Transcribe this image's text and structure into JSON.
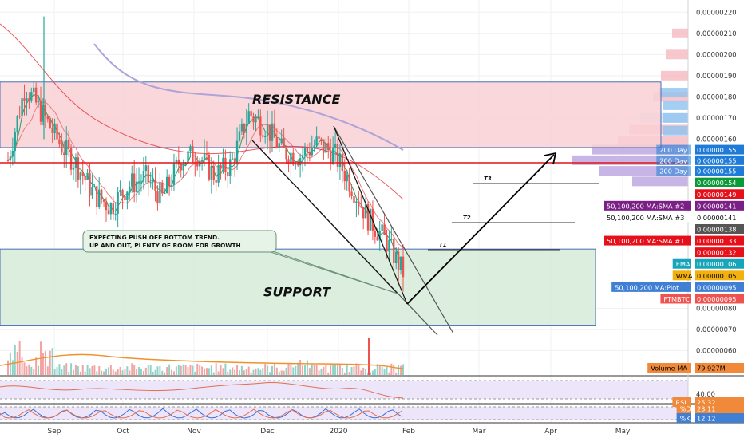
{
  "symbol": "FTMBTC",
  "zones": {
    "resistance": {
      "label": "RESISTANCE",
      "price_top": 1.87e-06,
      "price_bottom": 1.56e-06,
      "color": "#f7c5cb"
    },
    "support": {
      "label": "SUPPORT",
      "price_top": 1.08e-06,
      "price_bottom": 7.2e-07,
      "color": "#cde8d2"
    }
  },
  "annotation": {
    "line1": "EXPECTING PUSH OFF BOTTOM TREND.",
    "line2": "UP AND OUT, PLENTY OF ROOM FOR GROWTH"
  },
  "targets": [
    {
      "label": "T1",
      "price": 1.16e-06
    },
    {
      "label": "T2",
      "price": 1.31e-06
    },
    {
      "label": "T3",
      "price": 1.46e-06
    }
  ],
  "price_axis": {
    "ticks": [
      "0.00000220",
      "0.00000210",
      "0.00000200",
      "0.00000190",
      "0.00000180",
      "0.00000170",
      "0.00000160",
      "0.00000080",
      "0.00000070",
      "0.00000060"
    ],
    "tick_values": [
      2.2e-06,
      2.1e-06,
      2e-06,
      1.9e-06,
      1.8e-06,
      1.7e-06,
      1.6e-06,
      8e-07,
      7e-07,
      6e-07
    ]
  },
  "price_labels": [
    {
      "text": "0.00000155",
      "price": 1.55e-06,
      "bg": "#1e7bd8",
      "fg": "#ffffff",
      "tag": "200 Day"
    },
    {
      "text": "0.00000155",
      "price": 1.5e-06,
      "bg": "#1e7bd8",
      "fg": "#ffffff",
      "tag": "200 Day"
    },
    {
      "text": "0.00000155",
      "price": 1.45e-06,
      "bg": "#1e7bd8",
      "fg": "#ffffff",
      "tag": "200 Day"
    },
    {
      "text": "0.00000154",
      "price": 1.395e-06,
      "bg": "#0a9a3a",
      "fg": "#ffffff",
      "tag": ""
    },
    {
      "text": "0.00000149",
      "price": 1.34e-06,
      "bg": "#e5101a",
      "fg": "#ffffff",
      "tag": ""
    },
    {
      "text": "0.00000141",
      "price": 1.285e-06,
      "bg": "#7a1f86",
      "fg": "#ffffff",
      "tag": "50,100,200 MA:SMA #2"
    },
    {
      "text": "0.00000141",
      "price": 1.23e-06,
      "bg": "#ffffff",
      "fg": "#000000",
      "tag": "50,100,200 MA:SMA #3"
    },
    {
      "text": "0.00000138",
      "price": 1.175e-06,
      "bg": "#555555",
      "fg": "#ffffff",
      "tag": ""
    },
    {
      "text": "0.00000133",
      "price": 1.12e-06,
      "bg": "#e5101a",
      "fg": "#ffffff",
      "tag": "50,100,200 MA:SMA #1"
    },
    {
      "text": "0.00000132",
      "price": 1.065e-06,
      "bg": "#e5101a",
      "fg": "#ffffff",
      "tag": ""
    },
    {
      "text": "0.00000106",
      "price": 1.01e-06,
      "bg": "#17a6b9",
      "fg": "#ffffff",
      "tag": "EMA"
    },
    {
      "text": "0.00000105",
      "price": 9.55e-07,
      "bg": "#f2b10f",
      "fg": "#000000",
      "tag": "WMA"
    },
    {
      "text": "0.00000095",
      "price": 9e-07,
      "bg": "#3f7fd4",
      "fg": "#ffffff",
      "tag": "50,100,200 MA:Plot"
    },
    {
      "text": "0.00000095",
      "price": 8.45e-07,
      "bg": "#ef5350",
      "fg": "#ffffff",
      "tag": "FTMBTC"
    }
  ],
  "time_axis": {
    "labels": [
      "Sep",
      "Oct",
      "Nov",
      "Dec",
      "2020",
      "Feb",
      "Mar",
      "Apr",
      "May"
    ]
  },
  "volume_pane": {
    "label": "Volume MA",
    "value": "79.927M"
  },
  "rsi_pane": {
    "label": "RSI",
    "value": "25.32",
    "level": "40.00"
  },
  "stoch_pane": {
    "d_label": "%D",
    "d_value": "23.11",
    "k_label": "%K",
    "k_value": "12.12"
  },
  "colors": {
    "up": "#26a69a",
    "down": "#ef5350",
    "sma_red": "#e5101a",
    "ma_pink": "#e88080",
    "ma_purple": "#b0a3d9",
    "ema_green": "#2e9e5a"
  },
  "chart_data": {
    "type": "candlestick",
    "x": [
      "2019-08-20",
      "2019-08-27",
      "2019-09-03",
      "2019-09-10",
      "2019-09-17",
      "2019-09-24",
      "2019-10-01",
      "2019-10-08",
      "2019-10-15",
      "2019-10-22",
      "2019-10-29",
      "2019-11-05",
      "2019-11-12",
      "2019-11-19",
      "2019-11-26",
      "2019-12-03",
      "2019-12-10",
      "2019-12-17",
      "2019-12-24",
      "2019-12-31",
      "2020-01-07",
      "2020-01-14",
      "2020-01-21",
      "2020-01-27"
    ],
    "close": [
      1.5e-06,
      1.85e-06,
      1.72e-06,
      1.58e-06,
      1.48e-06,
      1.34e-06,
      1.28e-06,
      1.38e-06,
      1.42e-06,
      1.32e-06,
      1.5e-06,
      1.53e-06,
      1.43e-06,
      1.48e-06,
      1.72e-06,
      1.66e-06,
      1.54e-06,
      1.52e-06,
      1.58e-06,
      1.53e-06,
      1.38e-06,
      1.22e-06,
      1.12e-06,
      9.7e-07
    ],
    "ylim": [
      5.6e-07,
      2.22e-06
    ]
  }
}
